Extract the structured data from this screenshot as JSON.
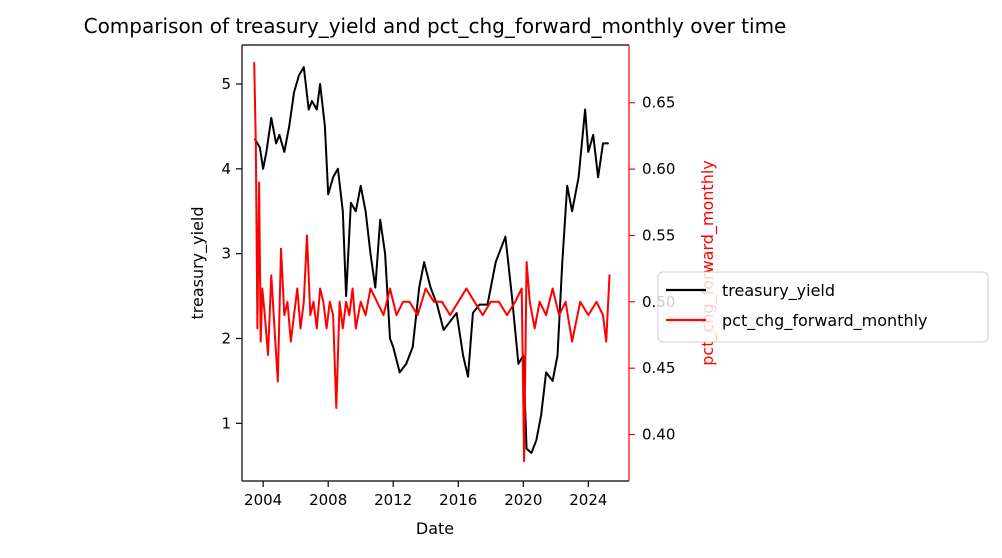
{
  "chart_data": {
    "type": "line",
    "title": "Comparison of treasury_yield and pct_chg_forward_monthly over time",
    "xlabel": "Date",
    "xlim": [
      2002.7,
      2026.5
    ],
    "x_ticks": [
      2004,
      2008,
      2012,
      2016,
      2020,
      2024
    ],
    "colors": {
      "treasury_yield": "#000000",
      "pct_chg_forward_monthly": "#ff0000"
    },
    "left_axis": {
      "label": "treasury_yield",
      "ylim": [
        0.32,
        5.46
      ],
      "ticks": [
        1,
        2,
        3,
        4,
        5
      ],
      "color": "#000000"
    },
    "right_axis": {
      "label": "pct_chg_forward_monthly",
      "ylim": [
        0.365,
        0.6935
      ],
      "ticks": [
        0.4,
        0.45,
        0.5,
        0.55,
        0.6,
        0.65
      ],
      "color": "#ff0000"
    },
    "legend": {
      "placement": "outside-right",
      "entries": [
        "treasury_yield",
        "pct_chg_forward_monthly"
      ]
    },
    "grid": false,
    "series": [
      {
        "name": "treasury_yield",
        "axis": "left",
        "color": "#000000",
        "x": [
          2003.5,
          2003.8,
          2004.0,
          2004.2,
          2004.5,
          2004.8,
          2005.0,
          2005.3,
          2005.6,
          2005.9,
          2006.2,
          2006.5,
          2006.8,
          2007.0,
          2007.3,
          2007.5,
          2007.8,
          2008.0,
          2008.3,
          2008.6,
          2008.9,
          2009.1,
          2009.4,
          2009.7,
          2010.0,
          2010.3,
          2010.6,
          2010.9,
          2011.2,
          2011.5,
          2011.8,
          2012.0,
          2012.4,
          2012.8,
          2013.2,
          2013.6,
          2013.9,
          2014.3,
          2014.7,
          2015.1,
          2015.5,
          2015.9,
          2016.3,
          2016.6,
          2016.9,
          2017.3,
          2017.8,
          2018.3,
          2018.9,
          2019.3,
          2019.7,
          2020.0,
          2020.2,
          2020.5,
          2020.8,
          2021.1,
          2021.4,
          2021.8,
          2022.1,
          2022.4,
          2022.7,
          2023.0,
          2023.4,
          2023.8,
          2024.0,
          2024.3,
          2024.6,
          2024.9,
          2025.2
        ],
        "values": [
          4.35,
          4.25,
          4.0,
          4.2,
          4.6,
          4.3,
          4.4,
          4.2,
          4.5,
          4.9,
          5.1,
          5.2,
          4.7,
          4.8,
          4.7,
          5.0,
          4.5,
          3.7,
          3.9,
          4.0,
          3.5,
          2.5,
          3.6,
          3.5,
          3.8,
          3.5,
          3.0,
          2.6,
          3.4,
          3.0,
          2.0,
          1.9,
          1.6,
          1.7,
          1.9,
          2.6,
          2.9,
          2.6,
          2.4,
          2.1,
          2.2,
          2.3,
          1.8,
          1.55,
          2.3,
          2.4,
          2.4,
          2.9,
          3.2,
          2.5,
          1.7,
          1.8,
          0.7,
          0.65,
          0.8,
          1.1,
          1.6,
          1.5,
          1.8,
          2.9,
          3.8,
          3.5,
          3.9,
          4.7,
          4.2,
          4.4,
          3.9,
          4.3,
          4.3
        ]
      },
      {
        "name": "pct_chg_forward_monthly",
        "axis": "right",
        "color": "#ff0000",
        "x": [
          2003.45,
          2003.55,
          2003.65,
          2003.75,
          2003.85,
          2003.95,
          2004.1,
          2004.3,
          2004.5,
          2004.7,
          2004.9,
          2005.1,
          2005.3,
          2005.5,
          2005.7,
          2005.9,
          2006.1,
          2006.3,
          2006.5,
          2006.7,
          2006.9,
          2007.1,
          2007.3,
          2007.5,
          2007.7,
          2007.9,
          2008.1,
          2008.3,
          2008.5,
          2008.7,
          2008.9,
          2009.1,
          2009.3,
          2009.5,
          2009.7,
          2010.0,
          2010.3,
          2010.6,
          2011.0,
          2011.4,
          2011.8,
          2012.2,
          2012.6,
          2013.0,
          2013.5,
          2014.0,
          2014.5,
          2015.0,
          2015.5,
          2016.0,
          2016.5,
          2017.0,
          2017.5,
          2018.0,
          2018.5,
          2019.0,
          2019.5,
          2019.9,
          2020.05,
          2020.2,
          2020.4,
          2020.7,
          2021.0,
          2021.4,
          2021.8,
          2022.2,
          2022.6,
          2023.0,
          2023.5,
          2024.0,
          2024.5,
          2024.9,
          2025.1,
          2025.3
        ],
        "values": [
          0.68,
          0.62,
          0.48,
          0.59,
          0.47,
          0.51,
          0.49,
          0.46,
          0.52,
          0.48,
          0.44,
          0.54,
          0.49,
          0.5,
          0.47,
          0.49,
          0.51,
          0.48,
          0.5,
          0.55,
          0.49,
          0.5,
          0.48,
          0.51,
          0.5,
          0.48,
          0.5,
          0.49,
          0.42,
          0.5,
          0.48,
          0.5,
          0.49,
          0.51,
          0.48,
          0.5,
          0.49,
          0.51,
          0.5,
          0.49,
          0.51,
          0.49,
          0.5,
          0.5,
          0.49,
          0.51,
          0.5,
          0.5,
          0.49,
          0.5,
          0.51,
          0.5,
          0.49,
          0.5,
          0.5,
          0.49,
          0.5,
          0.51,
          0.38,
          0.53,
          0.5,
          0.48,
          0.5,
          0.49,
          0.51,
          0.49,
          0.5,
          0.47,
          0.5,
          0.49,
          0.5,
          0.49,
          0.47,
          0.52
        ]
      }
    ]
  }
}
